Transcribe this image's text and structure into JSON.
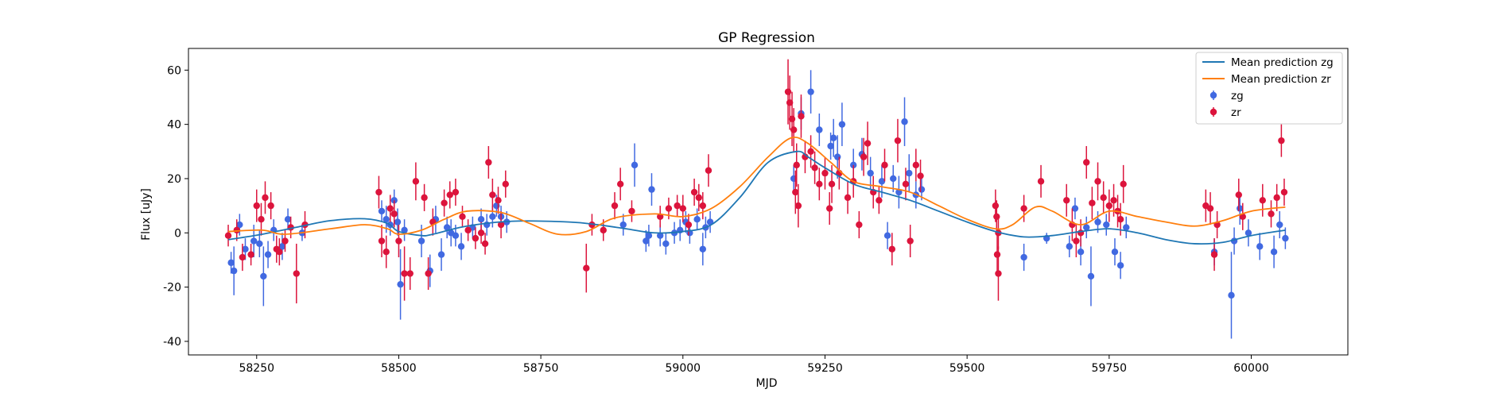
{
  "chart_data": {
    "type": "scatter",
    "title": "GP Regression",
    "xlabel": "MJD",
    "ylabel": "Flux [uJy]",
    "xlim": [
      58130,
      60170
    ],
    "ylim": [
      -45,
      68
    ],
    "xticks": [
      58250,
      58500,
      58750,
      59000,
      59250,
      59500,
      59750,
      60000
    ],
    "yticks": [
      -40,
      -20,
      0,
      20,
      40,
      60
    ],
    "grid": false,
    "legend_position": "top-right",
    "series": [
      {
        "name": "Mean prediction zg",
        "kind": "line",
        "color": "#1f77b4",
        "x": [
          58200,
          58260,
          58330,
          58380,
          58440,
          58480,
          58500,
          58540,
          58560,
          58620,
          58700,
          58800,
          58850,
          58900,
          58950,
          59000,
          59050,
          59100,
          59150,
          59200,
          59220,
          59250,
          59300,
          59350,
          59400,
          59450,
          59500,
          59550,
          59600,
          59650,
          59700,
          59750,
          59800,
          59850,
          59900,
          59950,
          60000,
          60060
        ],
        "y": [
          -2.5,
          -0.5,
          2.5,
          4.5,
          5.2,
          3.5,
          0.5,
          -1.0,
          -0.5,
          2.5,
          4.3,
          4.0,
          3.0,
          1.5,
          0.0,
          0.5,
          3.0,
          13.0,
          26.0,
          30.0,
          28.0,
          24.0,
          18.0,
          15.0,
          12.0,
          8.0,
          4.0,
          0.5,
          -1.5,
          -1.0,
          0.5,
          1.5,
          0.0,
          -2.5,
          -4.0,
          -3.5,
          -1.0,
          1.0
        ]
      },
      {
        "name": "Mean prediction zr",
        "kind": "line",
        "color": "#ff7f0e",
        "x": [
          58200,
          58260,
          58300,
          58380,
          58440,
          58480,
          58500,
          58540,
          58580,
          58620,
          58680,
          58730,
          58780,
          58830,
          58880,
          58950,
          59000,
          59050,
          59100,
          59150,
          59190,
          59220,
          59260,
          59300,
          59350,
          59400,
          59450,
          59500,
          59550,
          59580,
          59620,
          59650,
          59700,
          59750,
          59800,
          59850,
          59900,
          59950,
          60000,
          60060
        ],
        "y": [
          0.5,
          1.0,
          -0.5,
          1.5,
          3.0,
          1.5,
          -0.5,
          1.0,
          5.0,
          8.0,
          7.5,
          3.5,
          -0.5,
          0.5,
          5.5,
          7.0,
          6.0,
          9.0,
          17.0,
          28.0,
          35.0,
          33.0,
          26.0,
          19.0,
          17.0,
          15.0,
          10.0,
          5.0,
          1.5,
          3.0,
          9.5,
          8.0,
          3.0,
          8.0,
          6.0,
          4.0,
          2.5,
          4.5,
          8.0,
          9.5
        ]
      },
      {
        "name": "zg",
        "kind": "errorbar",
        "color": "#4169e1",
        "points": [
          [
            58205,
            -11,
            4
          ],
          [
            58210,
            -14,
            9
          ],
          [
            58220,
            3,
            4
          ],
          [
            58230,
            -6,
            4
          ],
          [
            58245,
            -3,
            6
          ],
          [
            58255,
            -4,
            5
          ],
          [
            58262,
            -16,
            11
          ],
          [
            58270,
            -8,
            5
          ],
          [
            58280,
            1,
            4
          ],
          [
            58295,
            -5,
            5
          ],
          [
            58305,
            5,
            4
          ],
          [
            58330,
            0,
            3
          ],
          [
            58470,
            8,
            4
          ],
          [
            58478,
            5,
            5
          ],
          [
            58485,
            3,
            4
          ],
          [
            58492,
            12,
            4
          ],
          [
            58498,
            4,
            5
          ],
          [
            58503,
            -19,
            13
          ],
          [
            58510,
            1,
            4
          ],
          [
            58540,
            -3,
            6
          ],
          [
            58555,
            -14,
            6
          ],
          [
            58565,
            5,
            5
          ],
          [
            58575,
            -8,
            6
          ],
          [
            58585,
            2,
            4
          ],
          [
            58592,
            0,
            5
          ],
          [
            58600,
            -1,
            4
          ],
          [
            58610,
            -5,
            5
          ],
          [
            58630,
            2,
            4
          ],
          [
            58645,
            5,
            4
          ],
          [
            58655,
            3,
            4
          ],
          [
            58665,
            6,
            4
          ],
          [
            58672,
            10,
            4
          ],
          [
            58680,
            6,
            4
          ],
          [
            58690,
            4,
            4
          ],
          [
            58895,
            3,
            4
          ],
          [
            58915,
            25,
            8
          ],
          [
            58935,
            -3,
            4
          ],
          [
            58940,
            -1,
            4
          ],
          [
            58945,
            16,
            6
          ],
          [
            58960,
            -1,
            4
          ],
          [
            58970,
            -4,
            4
          ],
          [
            58985,
            0,
            4
          ],
          [
            58995,
            1,
            4
          ],
          [
            59005,
            4,
            4
          ],
          [
            59012,
            0,
            4
          ],
          [
            59025,
            5,
            4
          ],
          [
            59035,
            -6,
            6
          ],
          [
            59040,
            2,
            4
          ],
          [
            59048,
            4,
            4
          ],
          [
            59195,
            20,
            5
          ],
          [
            59208,
            44,
            6
          ],
          [
            59225,
            52,
            8
          ],
          [
            59240,
            38,
            6
          ],
          [
            59260,
            32,
            5
          ],
          [
            59265,
            35,
            7
          ],
          [
            59272,
            28,
            8
          ],
          [
            59280,
            40,
            8
          ],
          [
            59300,
            25,
            6
          ],
          [
            59315,
            29,
            6
          ],
          [
            59330,
            22,
            6
          ],
          [
            59350,
            19,
            6
          ],
          [
            59360,
            -1,
            5
          ],
          [
            59370,
            20,
            5
          ],
          [
            59380,
            15,
            6
          ],
          [
            59390,
            41,
            9
          ],
          [
            59398,
            22,
            7
          ],
          [
            59410,
            14,
            5
          ],
          [
            59420,
            16,
            4
          ],
          [
            59600,
            -9,
            5
          ],
          [
            59640,
            -2,
            2
          ],
          [
            59680,
            -5,
            4
          ],
          [
            59690,
            9,
            4
          ],
          [
            59700,
            -7,
            5
          ],
          [
            59710,
            2,
            4
          ],
          [
            59718,
            -16,
            11
          ],
          [
            59730,
            4,
            4
          ],
          [
            59745,
            3,
            4
          ],
          [
            59760,
            -7,
            5
          ],
          [
            59770,
            -12,
            5
          ],
          [
            59780,
            2,
            4
          ],
          [
            59935,
            -7,
            5
          ],
          [
            59965,
            -23,
            16
          ],
          [
            59970,
            -3,
            5
          ],
          [
            59980,
            9,
            6
          ],
          [
            59995,
            0,
            5
          ],
          [
            60015,
            -5,
            5
          ],
          [
            60040,
            -7,
            6
          ],
          [
            60050,
            3,
            5
          ],
          [
            60060,
            -2,
            4
          ]
        ]
      },
      {
        "name": "zr",
        "kind": "errorbar",
        "color": "#dc143c",
        "points": [
          [
            58200,
            -1,
            4
          ],
          [
            58215,
            1,
            4
          ],
          [
            58225,
            -9,
            5
          ],
          [
            58240,
            -8,
            4
          ],
          [
            58250,
            10,
            6
          ],
          [
            58258,
            5,
            6
          ],
          [
            58265,
            13,
            6
          ],
          [
            58275,
            10,
            5
          ],
          [
            58285,
            -6,
            5
          ],
          [
            58290,
            -7,
            5
          ],
          [
            58300,
            -3,
            4
          ],
          [
            58310,
            2,
            4
          ],
          [
            58320,
            -15,
            11
          ],
          [
            58335,
            3,
            5
          ],
          [
            58465,
            15,
            6
          ],
          [
            58470,
            -3,
            6
          ],
          [
            58478,
            -7,
            6
          ],
          [
            58485,
            9,
            5
          ],
          [
            58492,
            7,
            5
          ],
          [
            58500,
            -3,
            6
          ],
          [
            58510,
            -15,
            10
          ],
          [
            58520,
            -15,
            6
          ],
          [
            58530,
            19,
            7
          ],
          [
            58545,
            13,
            5
          ],
          [
            58552,
            -15,
            6
          ],
          [
            58560,
            4,
            5
          ],
          [
            58580,
            11,
            5
          ],
          [
            58590,
            14,
            5
          ],
          [
            58600,
            15,
            5
          ],
          [
            58612,
            6,
            4
          ],
          [
            58622,
            1,
            4
          ],
          [
            58635,
            -2,
            4
          ],
          [
            58645,
            0,
            4
          ],
          [
            58652,
            -4,
            4
          ],
          [
            58658,
            26,
            6
          ],
          [
            58665,
            14,
            6
          ],
          [
            58675,
            12,
            5
          ],
          [
            58680,
            3,
            5
          ],
          [
            58688,
            18,
            5
          ],
          [
            58830,
            -13,
            9
          ],
          [
            58840,
            3,
            4
          ],
          [
            58860,
            1,
            4
          ],
          [
            58880,
            10,
            5
          ],
          [
            58890,
            18,
            6
          ],
          [
            58910,
            8,
            4
          ],
          [
            58960,
            6,
            4
          ],
          [
            58975,
            9,
            4
          ],
          [
            58990,
            10,
            4
          ],
          [
            59000,
            9,
            5
          ],
          [
            59010,
            3,
            4
          ],
          [
            59020,
            15,
            5
          ],
          [
            59028,
            13,
            5
          ],
          [
            59035,
            10,
            5
          ],
          [
            59045,
            23,
            6
          ],
          [
            59185,
            52,
            12
          ],
          [
            59188,
            48,
            10
          ],
          [
            59192,
            42,
            10
          ],
          [
            59195,
            38,
            8
          ],
          [
            59198,
            15,
            8
          ],
          [
            59200,
            25,
            8
          ],
          [
            59203,
            10,
            8
          ],
          [
            59208,
            43,
            8
          ],
          [
            59215,
            28,
            6
          ],
          [
            59225,
            30,
            6
          ],
          [
            59232,
            24,
            6
          ],
          [
            59240,
            18,
            6
          ],
          [
            59250,
            22,
            6
          ],
          [
            59258,
            9,
            6
          ],
          [
            59262,
            18,
            7
          ],
          [
            59275,
            22,
            6
          ],
          [
            59290,
            13,
            6
          ],
          [
            59300,
            19,
            6
          ],
          [
            59310,
            3,
            5
          ],
          [
            59318,
            28,
            7
          ],
          [
            59325,
            33,
            8
          ],
          [
            59335,
            15,
            6
          ],
          [
            59345,
            12,
            5
          ],
          [
            59355,
            25,
            6
          ],
          [
            59368,
            -6,
            6
          ],
          [
            59378,
            34,
            8
          ],
          [
            59392,
            18,
            6
          ],
          [
            59400,
            -3,
            6
          ],
          [
            59410,
            25,
            6
          ],
          [
            59418,
            21,
            6
          ],
          [
            59550,
            10,
            6
          ],
          [
            59552,
            6,
            6
          ],
          [
            59553,
            -8,
            8
          ],
          [
            59555,
            -15,
            10
          ],
          [
            59555,
            0,
            6
          ],
          [
            59600,
            9,
            5
          ],
          [
            59630,
            19,
            6
          ],
          [
            59675,
            12,
            6
          ],
          [
            59685,
            3,
            6
          ],
          [
            59692,
            -3,
            6
          ],
          [
            59700,
            0,
            5
          ],
          [
            59710,
            26,
            6
          ],
          [
            59720,
            11,
            6
          ],
          [
            59730,
            19,
            7
          ],
          [
            59740,
            13,
            6
          ],
          [
            59750,
            10,
            6
          ],
          [
            59758,
            12,
            6
          ],
          [
            59765,
            8,
            6
          ],
          [
            59770,
            5,
            6
          ],
          [
            59775,
            18,
            7
          ],
          [
            59920,
            10,
            6
          ],
          [
            59928,
            9,
            6
          ],
          [
            59935,
            -8,
            6
          ],
          [
            59940,
            3,
            5
          ],
          [
            59978,
            14,
            6
          ],
          [
            59985,
            6,
            5
          ],
          [
            60020,
            12,
            6
          ],
          [
            60035,
            7,
            5
          ],
          [
            60045,
            13,
            5
          ],
          [
            60053,
            34,
            6
          ],
          [
            60058,
            15,
            5
          ]
        ]
      }
    ]
  }
}
